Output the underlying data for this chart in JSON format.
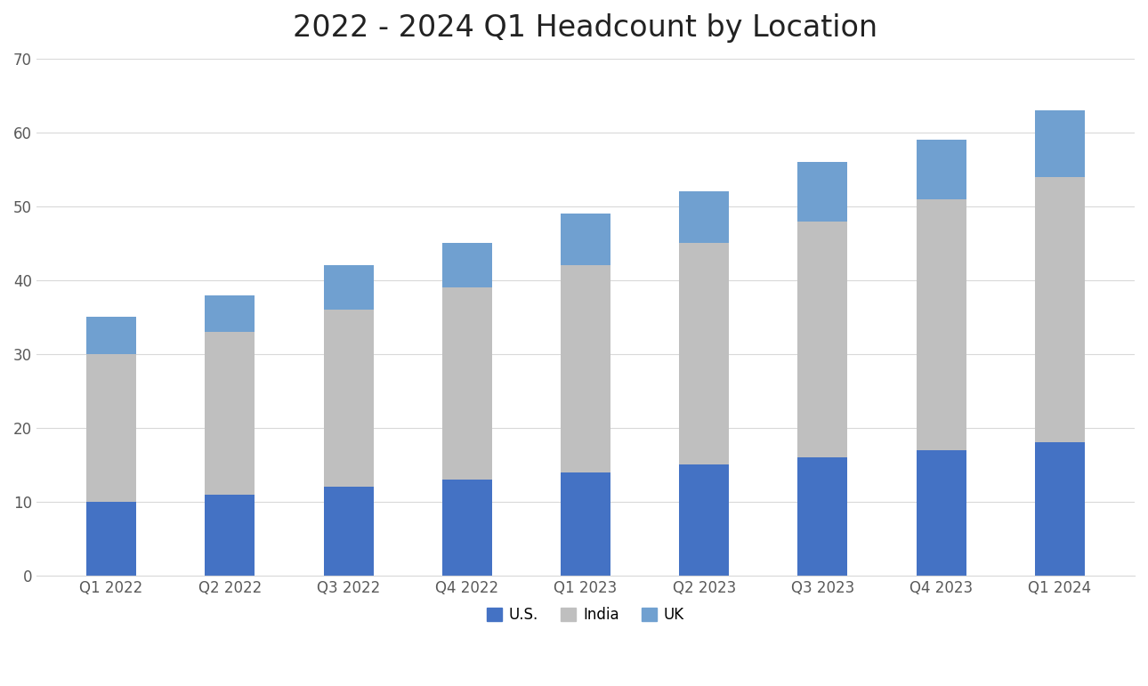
{
  "title": "2022 - 2024 Q1 Headcount by Location",
  "categories": [
    "Q1 2022",
    "Q2 2022",
    "Q3 2022",
    "Q4 2022",
    "Q1 2023",
    "Q2 2023",
    "Q3 2023",
    "Q4 2023",
    "Q1 2024"
  ],
  "us_values": [
    10,
    11,
    12,
    13,
    14,
    15,
    16,
    17,
    18
  ],
  "india_values": [
    20,
    22,
    24,
    26,
    28,
    30,
    32,
    34,
    36
  ],
  "uk_values": [
    5,
    5,
    6,
    6,
    7,
    7,
    8,
    8,
    9
  ],
  "colors": {
    "us": "#4472C4",
    "india": "#BFBFBF",
    "uk": "#70A0D0"
  },
  "legend_labels": [
    "U.S.",
    "India",
    "UK"
  ],
  "ylim": [
    0,
    70
  ],
  "yticks": [
    0,
    10,
    20,
    30,
    40,
    50,
    60,
    70
  ],
  "background_color": "#FFFFFF",
  "title_fontsize": 24,
  "tick_fontsize": 12,
  "legend_fontsize": 12,
  "bar_width": 0.42
}
